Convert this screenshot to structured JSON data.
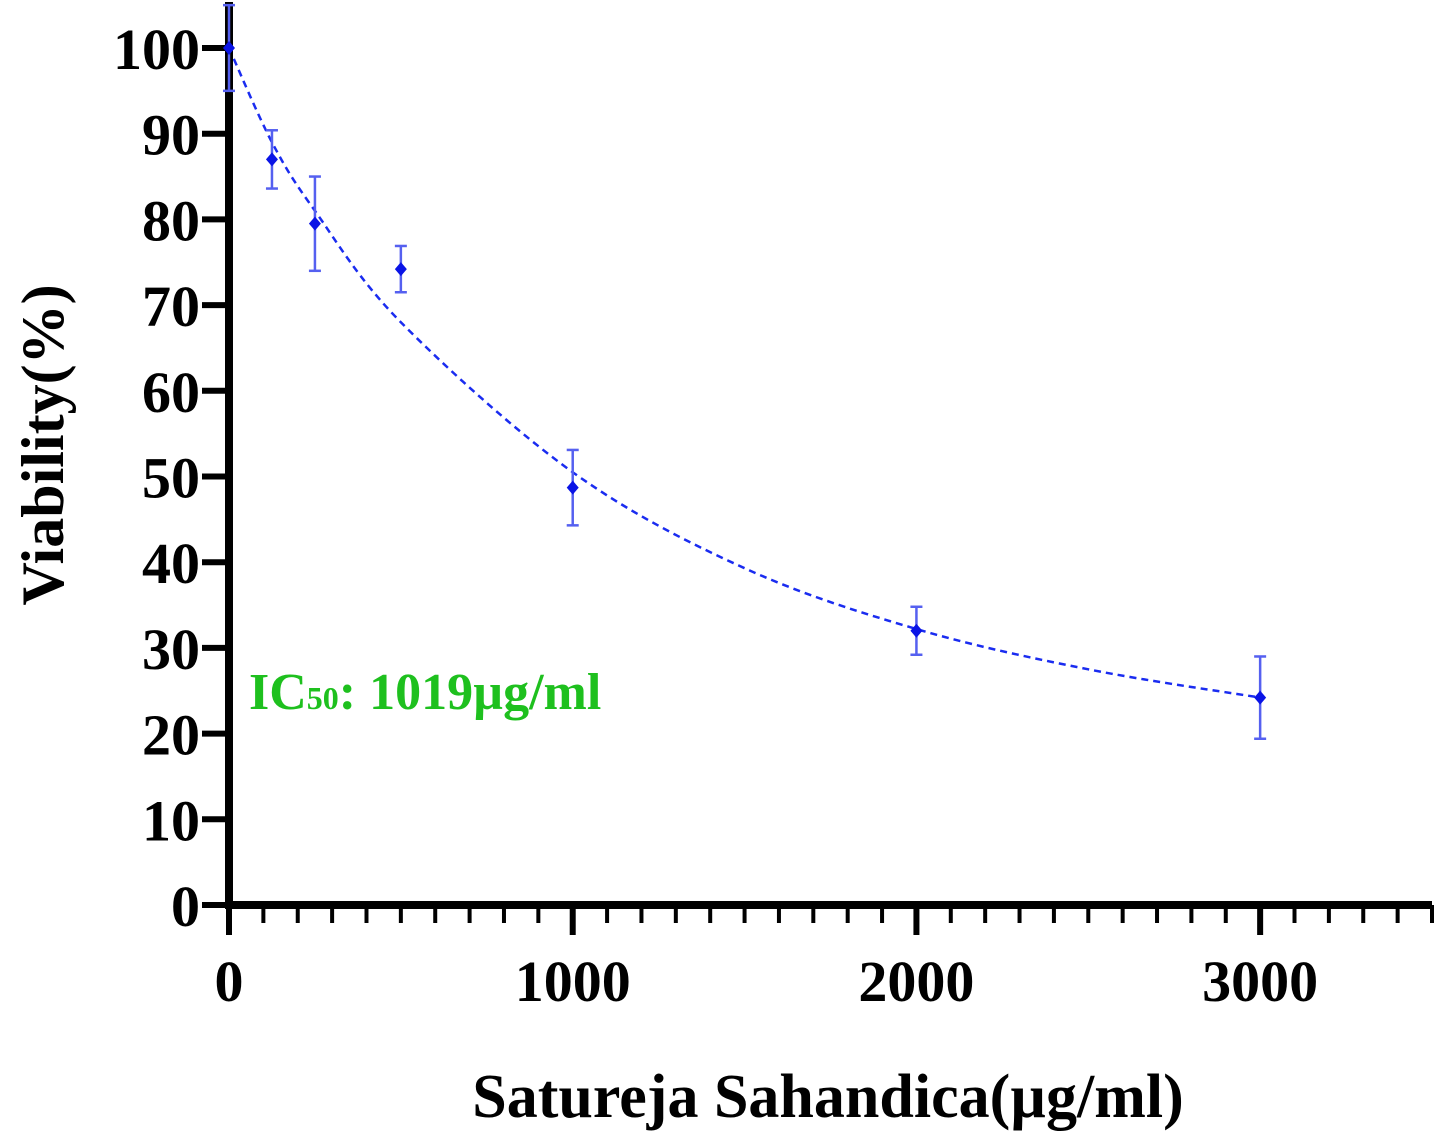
{
  "chart_data": {
    "type": "scatter",
    "title": "",
    "xlabel": "Satureja Sahandica(µg/ml)",
    "ylabel": "Viability(%)",
    "xlim": [
      0,
      3500
    ],
    "ylim": [
      0,
      100
    ],
    "x_ticks": [
      0,
      1000,
      2000,
      3000
    ],
    "y_ticks": [
      0,
      10,
      20,
      30,
      40,
      50,
      60,
      70,
      80,
      90,
      100
    ],
    "x_minor_step": 100,
    "grid": false,
    "legend": "none",
    "series": [
      {
        "x": [
          0,
          125,
          250,
          500,
          1000,
          2000,
          3000
        ],
        "y": [
          100,
          87,
          79.5,
          74.2,
          48.7,
          32,
          24.2
        ],
        "error": [
          5,
          3.4,
          5.5,
          2.7,
          4.4,
          2.8,
          4.8
        ],
        "color": "#0a14e6",
        "marker": "diamond"
      }
    ],
    "fit_curve": {
      "style": "dashed",
      "color": "#1a2cf0",
      "x": [
        0,
        125,
        250,
        500,
        1000,
        1500,
        2000,
        2500,
        3000
      ],
      "y": [
        100,
        89,
        81,
        68,
        50.5,
        39.3,
        32.2,
        27.5,
        24.2
      ]
    },
    "annotation": {
      "main": "IC",
      "subscript": "50",
      "rest": ": 1019µg/ml",
      "color": "#1ec01e"
    }
  }
}
